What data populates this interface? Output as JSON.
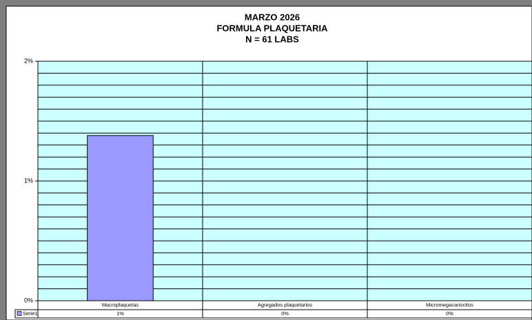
{
  "chart_data": {
    "type": "bar",
    "title": [
      "MARZO 2026",
      "FORMULA PLAQUETARIA",
      "N = 61 LABS"
    ],
    "categories": [
      "Macroplaquetas",
      "Agregados plaquetarios",
      "Micromegacariocitos"
    ],
    "series": [
      {
        "name": "Serie1",
        "color": "#9999ff",
        "values": [
          1.38,
          0,
          0
        ],
        "value_labels": [
          "1%",
          "0%",
          "0%"
        ]
      }
    ],
    "ylim": [
      0,
      2
    ],
    "yticks": [
      {
        "value": 0,
        "label": "0%"
      },
      {
        "value": 1,
        "label": "1%"
      },
      {
        "value": 2,
        "label": "2%"
      }
    ],
    "minor_yticks": [
      0.1,
      0.2,
      0.3,
      0.4,
      0.5,
      0.6,
      0.7,
      0.8,
      0.9,
      1.1,
      1.2,
      1.3,
      1.4,
      1.5,
      1.6,
      1.7,
      1.8,
      1.9
    ],
    "grid": true,
    "plot_background": "#ccffff"
  }
}
